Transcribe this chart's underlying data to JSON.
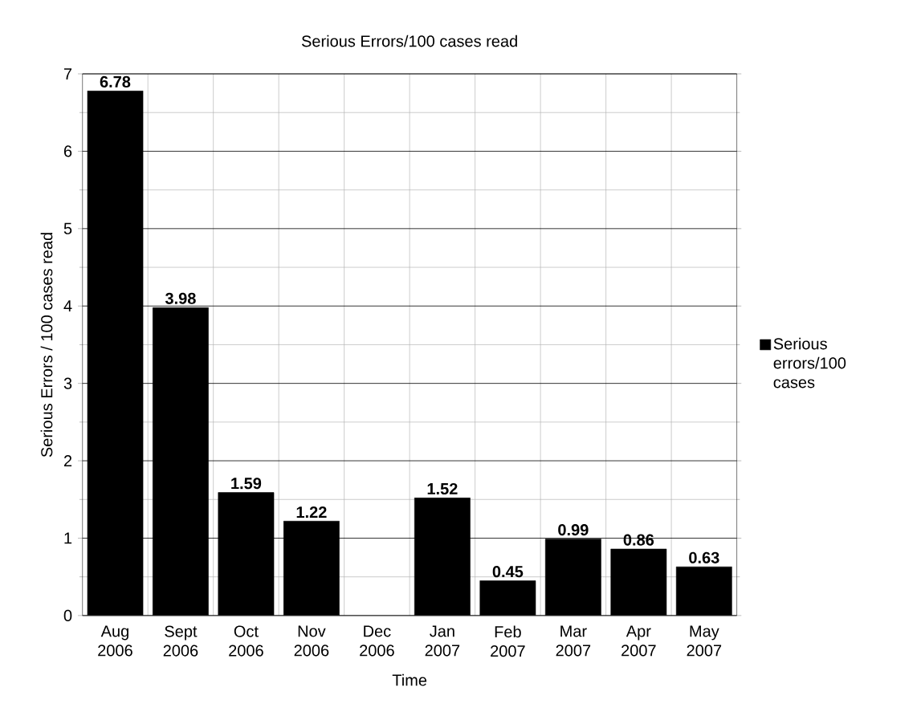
{
  "chart_data": {
    "type": "bar",
    "title": "Serious Errors/100 cases read",
    "xlabel": "Time",
    "ylabel": "Serious Errors / 100 cases read",
    "categories": [
      "Aug 2006",
      "Sept 2006",
      "Oct 2006",
      "Nov 2006",
      "Dec 2006",
      "Jan 2007",
      "Feb 2007",
      "Mar 2007",
      "Apr 2007",
      "May 2007"
    ],
    "series": [
      {
        "name": "Serious errors/100 cases",
        "color": "#000000",
        "values": [
          6.78,
          3.98,
          1.59,
          1.22,
          null,
          1.52,
          0.45,
          0.99,
          0.86,
          0.63
        ]
      }
    ],
    "ylim": [
      0,
      7
    ],
    "yticks": [
      0,
      1,
      2,
      3,
      4,
      5,
      6,
      7
    ],
    "grid": true,
    "legend": "right",
    "data_labels": true
  }
}
